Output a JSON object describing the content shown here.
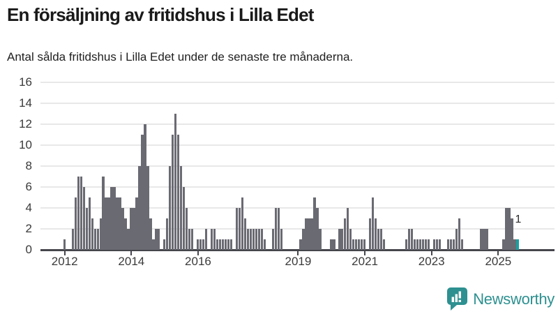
{
  "title": "En försäljning av fritidshus i Lilla Edet",
  "subtitle": "Antal sålda fritidshus i Lilla Edet under de senaste tre månaderna.",
  "annotation": {
    "label": "1"
  },
  "branding": {
    "logo_text": "Newsworthy",
    "logo_color": "#2e9090",
    "logo_icon": "bar-chart-speech-bubble-icon"
  },
  "chart_data": {
    "type": "bar",
    "title": "En försäljning av fritidshus i Lilla Edet",
    "xlabel": "",
    "ylabel": "",
    "ylim": [
      0,
      16
    ],
    "grid": true,
    "start_month": "2012-01",
    "end_month": "2025-08",
    "bar_color": "#6a6a73",
    "highlight_color": "#1ba0a0",
    "highlight_last": true,
    "highlight_value_label": "1",
    "yticks": [
      0,
      2,
      4,
      6,
      8,
      10,
      12,
      14,
      16
    ],
    "xticks": [
      {
        "label": "2012",
        "month_index": 0
      },
      {
        "label": "2014",
        "month_index": 24
      },
      {
        "label": "2016",
        "month_index": 48
      },
      {
        "label": "2019",
        "month_index": 84
      },
      {
        "label": "2021",
        "month_index": 108
      },
      {
        "label": "2023",
        "month_index": 132
      },
      {
        "label": "2025",
        "month_index": 156
      }
    ],
    "values": [
      1,
      0,
      0,
      2,
      5,
      7,
      7,
      6,
      4,
      5,
      3,
      2,
      2,
      3,
      7,
      5,
      5,
      6,
      6,
      5,
      5,
      4,
      3,
      2,
      4,
      4,
      5,
      8,
      11,
      12,
      8,
      3,
      1,
      2,
      2,
      0,
      1,
      3,
      8,
      11,
      13,
      11,
      8,
      6,
      4,
      2,
      2,
      0,
      1,
      1,
      1,
      2,
      0,
      2,
      2,
      1,
      1,
      1,
      1,
      1,
      1,
      0,
      4,
      4,
      5,
      3,
      2,
      2,
      2,
      2,
      2,
      2,
      1,
      0,
      0,
      2,
      4,
      4,
      2,
      0,
      0,
      0,
      0,
      0,
      0,
      1,
      2,
      3,
      3,
      3,
      5,
      4,
      2,
      0,
      0,
      0,
      1,
      1,
      0,
      2,
      2,
      3,
      4,
      2,
      1,
      1,
      1,
      1,
      1,
      0,
      3,
      5,
      3,
      2,
      2,
      1,
      0,
      0,
      0,
      0,
      0,
      0,
      0,
      1,
      2,
      2,
      1,
      1,
      1,
      1,
      1,
      1,
      0,
      1,
      1,
      1,
      0,
      0,
      1,
      1,
      1,
      2,
      3,
      1,
      0,
      0,
      0,
      0,
      0,
      0,
      2,
      2,
      2,
      0,
      0,
      0,
      0,
      0,
      1,
      4,
      4,
      3,
      1,
      1
    ]
  }
}
